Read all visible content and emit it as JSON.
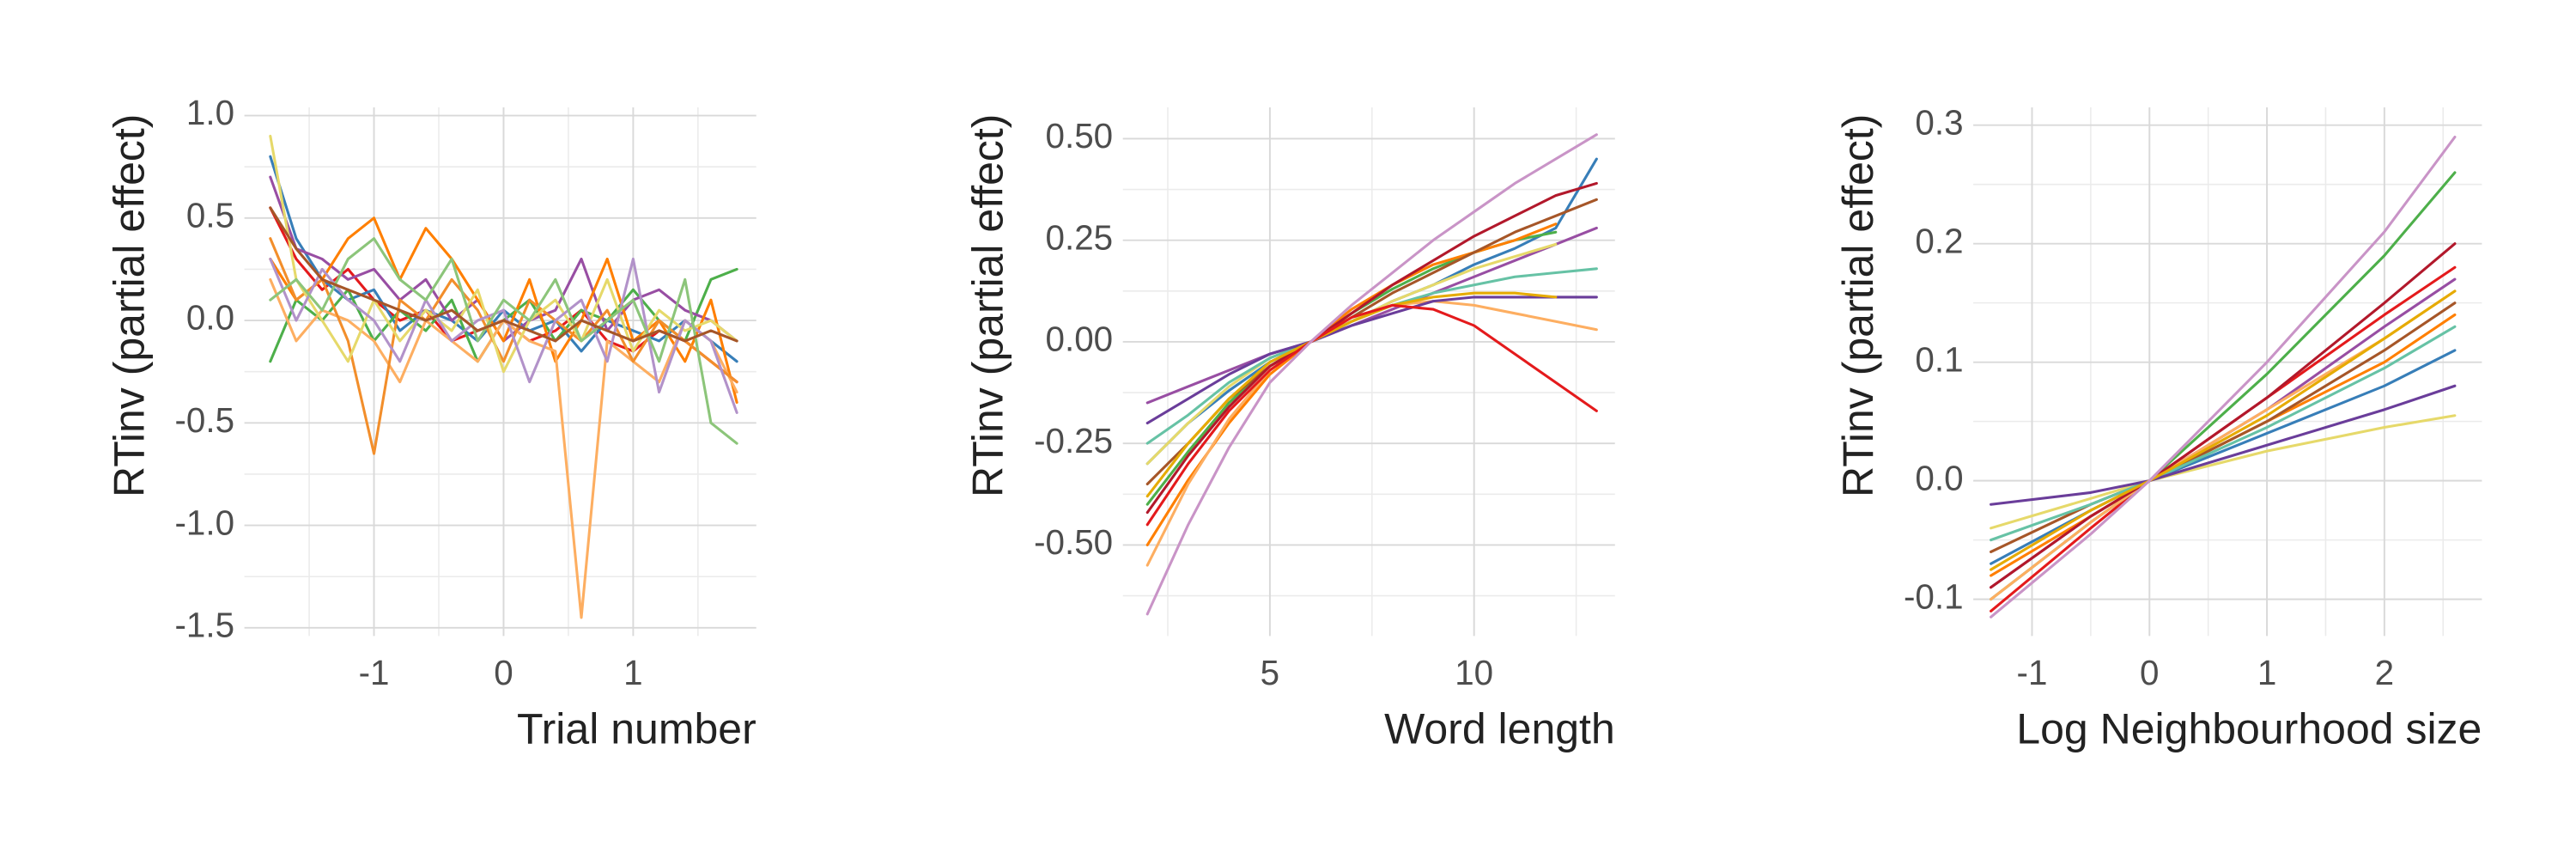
{
  "chart_data": [
    {
      "type": "line",
      "x_label": "Trial number",
      "y_label": "RTinv (partial effect)",
      "xlim": [
        -2.0,
        1.95
      ],
      "ylim": [
        -1.54,
        1.04
      ],
      "xticks": [
        -1,
        0,
        1
      ],
      "yticks": [
        {
          "value": -1.5,
          "label": "-1.5"
        },
        {
          "value": -1,
          "label": "-1.0"
        },
        -0.5,
        {
          "value": 0,
          "label": "0.0"
        },
        0.5,
        {
          "value": 1,
          "label": "1.0"
        }
      ],
      "xminor": [
        -1.5,
        -0.5,
        0.5,
        1.5
      ],
      "yminor": [
        -1.25,
        -0.75,
        -0.25,
        0.25,
        0.75
      ],
      "grid": true,
      "x": [
        -1.8,
        -1.6,
        -1.4,
        -1.2,
        -1.0,
        -0.8,
        -0.6,
        -0.4,
        -0.2,
        0.0,
        0.2,
        0.4,
        0.6,
        0.8,
        1.0,
        1.2,
        1.4,
        1.6,
        1.8
      ],
      "series": [
        {
          "color": "#e41a1c",
          "values": [
            0.55,
            0.3,
            0.15,
            0.25,
            0.1,
            0.0,
            0.05,
            -0.1,
            -0.05,
            0.0,
            -0.1,
            -0.05,
            0.05,
            -0.1,
            -0.15,
            -0.05,
            -0.1,
            -0.2,
            -0.3
          ]
        },
        {
          "color": "#377eb8",
          "values": [
            0.8,
            0.4,
            0.2,
            0.1,
            0.15,
            -0.05,
            0.05,
            0.0,
            -0.1,
            0.05,
            -0.05,
            0.0,
            -0.15,
            0.0,
            -0.05,
            -0.1,
            0.0,
            -0.1,
            -0.2
          ]
        },
        {
          "color": "#4daf4a",
          "values": [
            -0.2,
            0.1,
            0.0,
            0.15,
            -0.1,
            0.05,
            -0.05,
            0.1,
            -0.2,
            0.0,
            0.1,
            -0.1,
            0.05,
            0.0,
            0.15,
            0.0,
            -0.1,
            0.2,
            0.25
          ]
        },
        {
          "color": "#984ea3",
          "values": [
            0.7,
            0.35,
            0.3,
            0.2,
            0.25,
            0.1,
            0.2,
            0.0,
            0.1,
            -0.1,
            0.0,
            0.05,
            0.3,
            -0.05,
            0.1,
            0.15,
            0.05,
            0.0,
            -0.1
          ]
        },
        {
          "color": "#ff7f00",
          "values": [
            0.3,
            0.1,
            0.2,
            0.4,
            0.5,
            0.2,
            0.45,
            0.3,
            0.1,
            -0.1,
            0.2,
            -0.2,
            0.0,
            0.3,
            -0.1,
            0.0,
            -0.2,
            0.1,
            -0.4
          ]
        },
        {
          "color": "#fdae61",
          "values": [
            0.2,
            -0.1,
            0.05,
            0.0,
            -0.1,
            -0.3,
            0.0,
            -0.1,
            -0.2,
            0.0,
            -0.1,
            -0.15,
            -1.45,
            -0.1,
            -0.2,
            -0.3,
            0.0,
            -0.1,
            -0.35
          ]
        },
        {
          "color": "#f28e2b",
          "values": [
            0.4,
            0.1,
            0.2,
            -0.1,
            -0.65,
            0.1,
            0.0,
            0.2,
            0.05,
            -0.2,
            0.1,
            0.0,
            -0.1,
            0.05,
            -0.2,
            0.0,
            -0.1,
            -0.2,
            -0.3
          ]
        },
        {
          "color": "#e6d96a",
          "values": [
            0.9,
            0.2,
            0.0,
            -0.2,
            0.1,
            -0.1,
            0.05,
            -0.05,
            0.15,
            -0.25,
            0.0,
            0.1,
            -0.1,
            0.2,
            -0.15,
            0.05,
            -0.05,
            0.0,
            -0.1
          ]
        },
        {
          "color": "#b292c9",
          "values": [
            0.3,
            0.0,
            0.25,
            0.1,
            0.0,
            -0.2,
            0.1,
            -0.1,
            0.0,
            0.05,
            -0.3,
            0.0,
            0.1,
            -0.2,
            0.3,
            -0.35,
            0.0,
            -0.1,
            -0.45
          ]
        },
        {
          "color": "#8cc57a",
          "values": [
            0.1,
            0.2,
            0.05,
            0.3,
            0.4,
            0.2,
            0.1,
            0.3,
            -0.1,
            0.1,
            0.0,
            0.2,
            -0.1,
            0.0,
            0.1,
            -0.2,
            0.2,
            -0.5,
            -0.6
          ]
        },
        {
          "color": "#a65628",
          "values": [
            0.55,
            0.35,
            0.2,
            0.15,
            0.1,
            0.05,
            0.0,
            0.05,
            -0.05,
            0.0,
            -0.05,
            -0.1,
            0.0,
            -0.05,
            -0.1,
            -0.05,
            -0.1,
            -0.05,
            -0.1
          ]
        }
      ]
    },
    {
      "type": "line",
      "x_label": "Word length",
      "y_label": "RTinv (partial effect)",
      "xlim": [
        1.4,
        13.45
      ],
      "ylim": [
        -0.724,
        0.577
      ],
      "xticks": [
        5,
        10
      ],
      "yticks": [
        {
          "value": -0.5,
          "label": "-0.50"
        },
        -0.25,
        {
          "value": 0,
          "label": "0.00"
        },
        0.25,
        {
          "value": 0.5,
          "label": "0.50"
        }
      ],
      "xminor": [
        2.5,
        7.5,
        12.5
      ],
      "yminor": [
        -0.625,
        -0.375,
        -0.125,
        0.125,
        0.375
      ],
      "grid": true,
      "x": [
        2,
        3,
        4,
        5,
        6,
        7,
        8,
        9,
        10,
        11,
        12,
        13
      ],
      "series": [
        {
          "color": "#377eb8",
          "values": [
            -0.3,
            -0.2,
            -0.12,
            -0.05,
            0.0,
            0.05,
            0.1,
            0.14,
            0.19,
            0.23,
            0.28,
            0.45
          ]
        },
        {
          "color": "#4daf4a",
          "values": [
            -0.4,
            -0.27,
            -0.15,
            -0.06,
            0.0,
            0.07,
            0.13,
            0.18,
            0.22,
            0.25,
            0.27,
            null
          ]
        },
        {
          "color": "#984ea3",
          "values": [
            -0.15,
            -0.11,
            -0.07,
            -0.03,
            0.0,
            0.04,
            0.08,
            0.12,
            0.16,
            0.2,
            0.24,
            0.28
          ]
        },
        {
          "color": "#ff7f00",
          "values": [
            -0.5,
            -0.34,
            -0.2,
            -0.08,
            0.0,
            0.08,
            0.14,
            0.19,
            0.22,
            0.25,
            0.29,
            null
          ]
        },
        {
          "color": "#fdae61",
          "values": [
            -0.55,
            -0.35,
            -0.19,
            -0.07,
            0.0,
            0.06,
            0.09,
            0.1,
            0.09,
            0.07,
            0.05,
            0.03
          ]
        },
        {
          "color": "#a65628",
          "values": [
            -0.35,
            -0.25,
            -0.14,
            -0.06,
            0.0,
            0.06,
            0.12,
            0.17,
            0.22,
            0.27,
            0.31,
            0.35
          ]
        },
        {
          "color": "#e6d96a",
          "values": [
            -0.3,
            -0.2,
            -0.11,
            -0.04,
            0.0,
            0.05,
            0.1,
            0.14,
            0.18,
            0.21,
            0.24,
            null
          ]
        },
        {
          "color": "#66c2a5",
          "values": [
            -0.25,
            -0.18,
            -0.1,
            -0.04,
            0.0,
            0.05,
            0.09,
            0.12,
            0.14,
            0.16,
            0.17,
            0.18
          ]
        },
        {
          "color": "#b2182b",
          "values": [
            -0.42,
            -0.28,
            -0.16,
            -0.06,
            0.0,
            0.07,
            0.14,
            0.2,
            0.26,
            0.31,
            0.36,
            0.39
          ]
        },
        {
          "color": "#6a3d9a",
          "values": [
            -0.2,
            -0.14,
            -0.08,
            -0.03,
            0.0,
            0.04,
            0.07,
            0.1,
            0.11,
            0.11,
            0.11,
            0.11
          ]
        },
        {
          "color": "#e6ab02",
          "values": [
            -0.38,
            -0.25,
            -0.14,
            -0.05,
            0.0,
            0.05,
            0.09,
            0.11,
            0.12,
            0.12,
            0.11,
            null
          ]
        },
        {
          "color": "#e41a1c",
          "values": [
            -0.45,
            -0.3,
            -0.17,
            -0.07,
            0.0,
            0.06,
            0.09,
            0.08,
            0.04,
            -0.03,
            -0.1,
            -0.17
          ]
        },
        {
          "color": "#c994c7",
          "values": [
            -0.67,
            -0.45,
            -0.26,
            -0.1,
            0.0,
            0.09,
            0.17,
            0.25,
            0.32,
            0.39,
            0.45,
            0.51
          ]
        }
      ]
    },
    {
      "type": "line",
      "x_label": "Log Neighbourhood size",
      "y_label": "RTinv (partial effect)",
      "xlim": [
        -1.5,
        2.83
      ],
      "ylim": [
        -0.131,
        0.315
      ],
      "xticks": [
        -1,
        0,
        1,
        2
      ],
      "yticks": [
        -0.1,
        {
          "value": 0,
          "label": "0.0"
        },
        0.1,
        0.2,
        0.3
      ],
      "xminor": [
        -0.5,
        0.5,
        1.5,
        2.5
      ],
      "yminor": [
        -0.05,
        0.05,
        0.15,
        0.25
      ],
      "grid": true,
      "x": [
        -1.35,
        -0.5,
        0,
        1,
        2,
        2.6
      ],
      "series": [
        {
          "color": "#e41a1c",
          "values": [
            -0.11,
            -0.04,
            0.0,
            0.07,
            0.14,
            0.18
          ]
        },
        {
          "color": "#377eb8",
          "values": [
            -0.07,
            -0.025,
            0.0,
            0.04,
            0.08,
            0.11
          ]
        },
        {
          "color": "#4daf4a",
          "values": [
            -0.1,
            -0.035,
            0.0,
            0.09,
            0.19,
            0.26
          ]
        },
        {
          "color": "#984ea3",
          "values": [
            -0.09,
            -0.03,
            0.0,
            0.06,
            0.13,
            0.17
          ]
        },
        {
          "color": "#ff7f00",
          "values": [
            -0.08,
            -0.03,
            0.0,
            0.05,
            0.1,
            0.14
          ]
        },
        {
          "color": "#fdae61",
          "values": [
            -0.1,
            -0.035,
            0.0,
            0.06,
            0.12,
            0.16
          ]
        },
        {
          "color": "#a65628",
          "values": [
            -0.06,
            -0.02,
            0.0,
            0.05,
            0.11,
            0.15
          ]
        },
        {
          "color": "#e6d96a",
          "values": [
            -0.04,
            -0.015,
            0.0,
            0.025,
            0.045,
            0.055
          ]
        },
        {
          "color": "#66c2a5",
          "values": [
            -0.05,
            -0.02,
            0.0,
            0.045,
            0.095,
            0.13
          ]
        },
        {
          "color": "#b2182b",
          "values": [
            -0.09,
            -0.03,
            0.0,
            0.07,
            0.15,
            0.2
          ]
        },
        {
          "color": "#6a3d9a",
          "values": [
            -0.02,
            -0.01,
            0.0,
            0.03,
            0.06,
            0.08
          ]
        },
        {
          "color": "#e6ab02",
          "values": [
            -0.075,
            -0.025,
            0.0,
            0.055,
            0.12,
            0.16
          ]
        },
        {
          "color": "#c994c7",
          "values": [
            -0.115,
            -0.045,
            0.0,
            0.1,
            0.21,
            0.29
          ]
        }
      ]
    }
  ]
}
